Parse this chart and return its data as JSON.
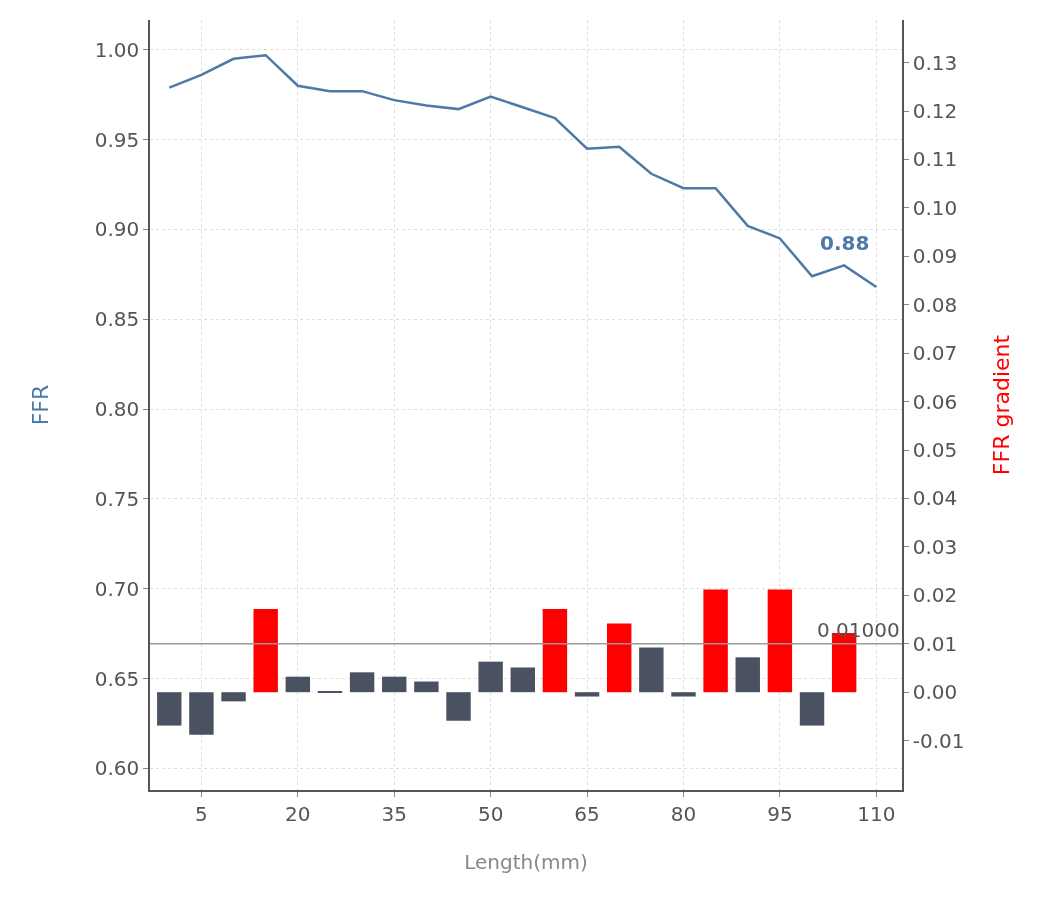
{
  "chart_data": {
    "type": "line",
    "xlabel": "Length(mm)",
    "ylabel": "FFR",
    "y2label": "FFR gradient",
    "xlim": [
      -3,
      114
    ],
    "xticks": [
      5,
      20,
      35,
      50,
      65,
      80,
      95,
      110
    ],
    "ylim": [
      0.588,
      1.0166
    ],
    "yticks": [
      {
        "value": 0.6,
        "label": "0.60"
      },
      {
        "value": 0.65,
        "label": "0.65"
      },
      {
        "value": 0.7,
        "label": "0.70"
      },
      {
        "value": 0.75,
        "label": "0.75"
      },
      {
        "value": 0.8,
        "label": "0.80"
      },
      {
        "value": 0.85,
        "label": "0.85"
      },
      {
        "value": 0.9,
        "label": "0.90"
      },
      {
        "value": 0.95,
        "label": "0.95"
      },
      {
        "value": 1.0,
        "label": "1.00"
      }
    ],
    "y2lim": [
      -0.0202,
      0.1388
    ],
    "y2ticks": [
      {
        "value": -0.01,
        "label": "-0.01"
      },
      {
        "value": 0,
        "label": "0.00"
      },
      {
        "value": 0.01,
        "label": "0.01"
      },
      {
        "value": 0.02,
        "label": "0.02"
      },
      {
        "value": 0.03,
        "label": "0.03"
      },
      {
        "value": 0.04,
        "label": "0.04"
      },
      {
        "value": 0.05,
        "label": "0.05"
      },
      {
        "value": 0.06,
        "label": "0.06"
      },
      {
        "value": 0.07,
        "label": "0.07"
      },
      {
        "value": 0.08,
        "label": "0.08"
      },
      {
        "value": 0.09,
        "label": "0.09"
      },
      {
        "value": 0.1,
        "label": "0.10"
      },
      {
        "value": 0.11,
        "label": "0.11"
      },
      {
        "value": 0.12,
        "label": "0.12"
      },
      {
        "value": 0.13,
        "label": "0.13"
      }
    ],
    "grid": true,
    "series": [
      {
        "type": "bar",
        "axis": "y2",
        "x": [
          0,
          5,
          10,
          15,
          20,
          25,
          30,
          35,
          40,
          45,
          50,
          55,
          60,
          65,
          70,
          75,
          80,
          85,
          90,
          95,
          100,
          105
        ],
        "values": [
          -0.0069,
          -0.0088,
          -0.0019,
          0.0172,
          0.0032,
          0.0001,
          0.0041,
          0.0032,
          0.0022,
          -0.0059,
          0.0063,
          0.0051,
          0.0172,
          -0.0009,
          0.0142,
          0.0092,
          -0.0009,
          0.0212,
          0.0072,
          0.0212,
          -0.0069,
          0.0122
        ],
        "colors": [
          "#4a5262",
          "#4a5262",
          "#4a5262",
          "#ff0000",
          "#4a5262",
          "#4a5262",
          "#4a5262",
          "#4a5262",
          "#4a5262",
          "#4a5262",
          "#4a5262",
          "#4a5262",
          "#ff0000",
          "#4a5262",
          "#ff0000",
          "#4a5262",
          "#4a5262",
          "#ff0000",
          "#4a5262",
          "#ff0000",
          "#4a5262",
          "#ff0000"
        ]
      },
      {
        "color": "#4e79a7",
        "x": [
          0,
          5,
          10,
          15,
          20,
          25,
          30,
          35,
          40,
          45,
          50,
          55,
          60,
          65,
          70,
          75,
          80,
          85,
          90,
          95,
          100,
          105,
          110
        ],
        "values": [
          0.979,
          0.986,
          0.995,
          0.997,
          0.98,
          0.977,
          0.977,
          0.972,
          0.969,
          0.967,
          0.974,
          0.968,
          0.962,
          0.945,
          0.946,
          0.931,
          0.923,
          0.923,
          0.902,
          0.895,
          0.874,
          0.88,
          0.868
        ]
      }
    ],
    "ref_lines": [
      {
        "axis": "y2",
        "value": 0.01,
        "label": "0.01000",
        "color": "#999999"
      }
    ],
    "annotations": [
      {
        "text": "0.88",
        "x": 105,
        "y": 0.88
      }
    ]
  }
}
